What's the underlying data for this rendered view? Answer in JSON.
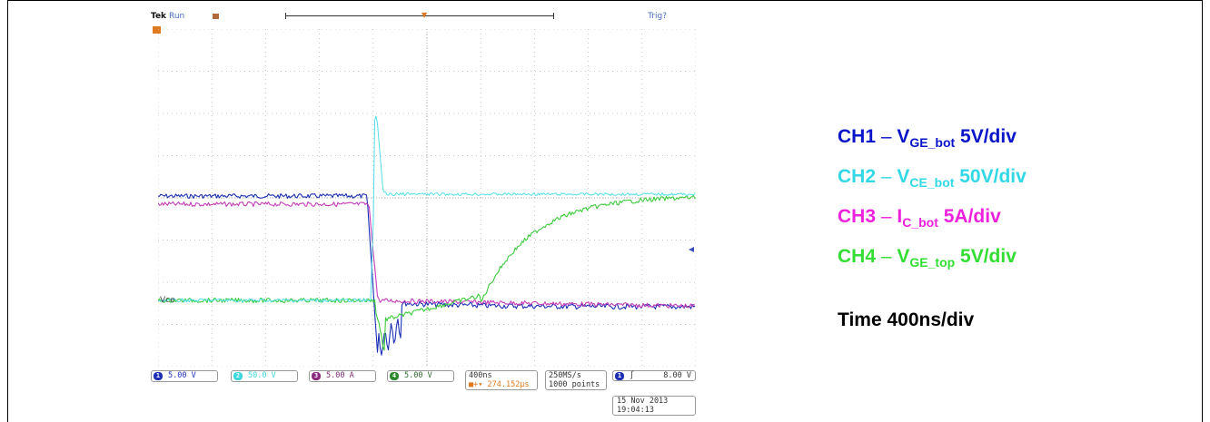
{
  "scope": {
    "brand": "Tek",
    "state": "Run",
    "trigger_status": "Trig?",
    "ref_label": "Vce",
    "channels": [
      {
        "id": "1",
        "scale": "5.00 V",
        "color": "#1c2fb4"
      },
      {
        "id": "2",
        "scale": "50.0 V",
        "color": "#3cd6dc"
      },
      {
        "id": "3",
        "scale": "5.00 A",
        "color": "#c43cb8"
      },
      {
        "id": "4",
        "scale": "5.00 V",
        "color": "#2ea82e"
      }
    ],
    "timebase": "400ns",
    "trigger_pos": "274.152µs",
    "sample_rate": "250MS/s",
    "record_length": "1000 points",
    "trigger_channel": "1",
    "trigger_level": "8.00 V",
    "date": "15 Nov 2013",
    "time": "19:04:13"
  },
  "legend": {
    "ch1": {
      "name": "CH1",
      "sep": "–",
      "sym": "V",
      "sub": "GE_bot",
      "scale": "5V/div",
      "color": "#0a14c8"
    },
    "ch2": {
      "name": "CH2",
      "sep": "–",
      "sym": "V",
      "sub": "CE_bot",
      "scale": "50V/div",
      "color": "#33d8e6"
    },
    "ch3": {
      "name": "CH3",
      "sep": "–",
      "sym": "I",
      "sub": "C_bot",
      "scale": "5A/div",
      "color": "#ee22dd"
    },
    "ch4": {
      "name": "CH4",
      "sep": "–",
      "sym": "V",
      "sub": "GE_top",
      "scale": "5V/div",
      "color": "#33dd33"
    },
    "time": "Time 400ns/div"
  },
  "colors": {
    "grid": "#c8c8c8",
    "ch1": "#1c2fb4",
    "ch2": "#52dde6",
    "ch3": "#c43cb8",
    "ch4": "#3ccc3c"
  }
}
